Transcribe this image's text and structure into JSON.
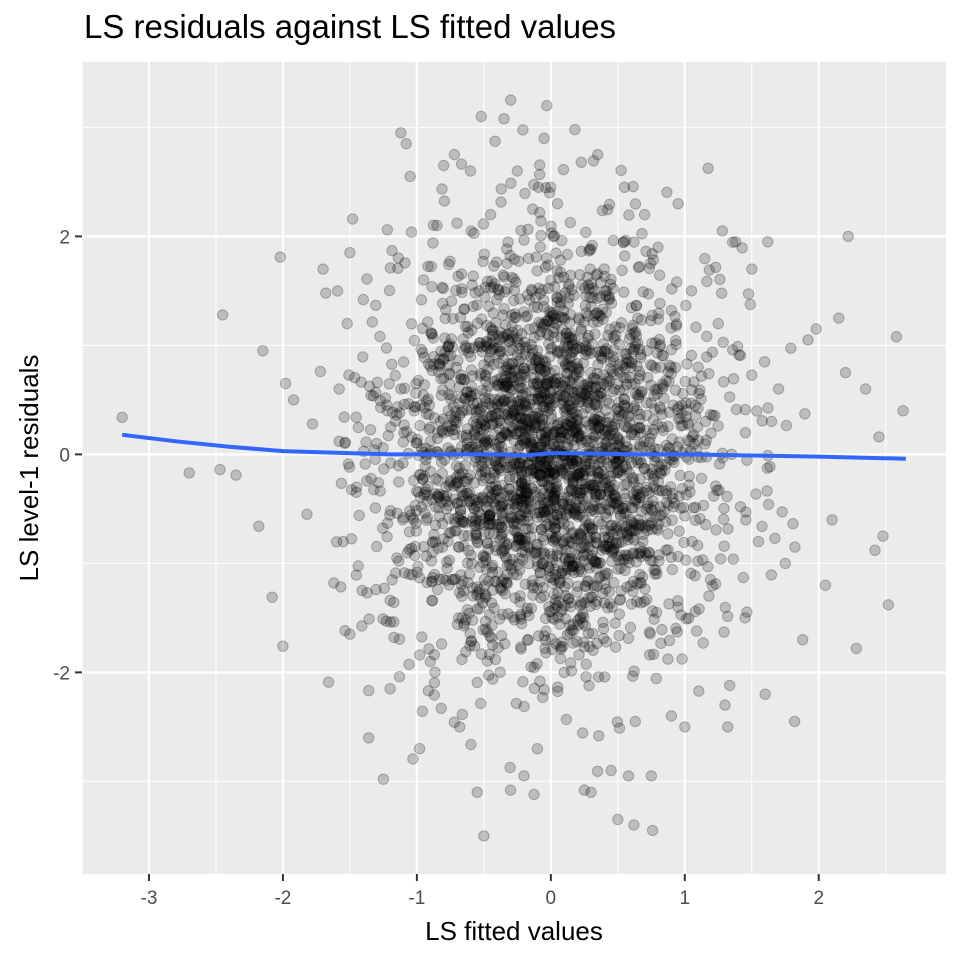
{
  "chart_data": {
    "type": "scatter",
    "title": "LS residuals against LS fitted values",
    "xlabel": "LS fitted values",
    "ylabel": "LS level-1 residuals",
    "xlim": [
      -3.5,
      2.95
    ],
    "ylim": [
      -3.85,
      3.6
    ],
    "x_ticks": [
      -3,
      -2,
      -1,
      0,
      1,
      2
    ],
    "y_ticks": [
      -2,
      0,
      2
    ],
    "x_tick_labels": [
      "-3",
      "-2",
      "-1",
      "0",
      "1",
      "2"
    ],
    "y_tick_labels": [
      "-2",
      "0",
      "2"
    ],
    "grid": true,
    "point_count_approx": 3000,
    "point_color": "#000000",
    "point_alpha": 0.2,
    "smooth_color": "#3366FF",
    "background_color": "#EBEBEB",
    "grid_color": "#FFFFFF",
    "smooth_line": {
      "x": [
        -3.2,
        -2.8,
        -2.4,
        -2.0,
        -1.6,
        -1.2,
        -0.8,
        -0.4,
        -0.2,
        0.0,
        0.2,
        0.6,
        1.0,
        1.5,
        2.0,
        2.3,
        2.65
      ],
      "y": [
        0.18,
        0.12,
        0.07,
        0.03,
        0.015,
        0.0,
        0.0,
        0.0,
        -0.01,
        0.01,
        0.01,
        0.0,
        0.0,
        -0.01,
        -0.02,
        -0.03,
        -0.04
      ]
    },
    "points": [
      [
        -3.2,
        0.34
      ],
      [
        -2.7,
        -0.17
      ],
      [
        -2.47,
        -0.14
      ],
      [
        -2.35,
        -0.19
      ],
      [
        -2.45,
        1.28
      ],
      [
        -2.15,
        0.95
      ],
      [
        -2.18,
        -0.66
      ],
      [
        -2.08,
        -1.31
      ],
      [
        -2.02,
        1.81
      ],
      [
        -2.0,
        -1.76
      ],
      [
        -1.98,
        0.65
      ],
      [
        -1.92,
        0.5
      ],
      [
        -1.82,
        -0.55
      ],
      [
        -1.78,
        0.28
      ],
      [
        -1.72,
        0.76
      ],
      [
        -1.7,
        1.7
      ],
      [
        -1.68,
        1.48
      ],
      [
        -1.66,
        -2.09
      ],
      [
        -1.62,
        -1.18
      ],
      [
        -1.58,
        0.6
      ],
      [
        -1.55,
        -0.8
      ],
      [
        -1.52,
        1.2
      ],
      [
        -1.5,
        -1.65
      ],
      [
        -1.48,
        2.16
      ],
      [
        -1.45,
        -0.3
      ],
      [
        -1.4,
        1.42
      ],
      [
        -1.36,
        -2.6
      ],
      [
        -1.3,
        0.1
      ],
      [
        -1.25,
        -2.98
      ],
      [
        -1.22,
        2.06
      ],
      [
        -1.2,
        -2.15
      ],
      [
        -1.15,
        -0.95
      ],
      [
        -1.12,
        2.95
      ],
      [
        -1.08,
        2.85
      ],
      [
        -1.05,
        2.55
      ],
      [
        -1.02,
        0.4
      ],
      [
        -0.98,
        -2.7
      ],
      [
        -0.95,
        1.6
      ],
      [
        -0.9,
        -1.9
      ],
      [
        -0.85,
        2.1
      ],
      [
        -0.8,
        2.65
      ],
      [
        -0.78,
        -0.5
      ],
      [
        -0.72,
        2.75
      ],
      [
        -0.68,
        -2.5
      ],
      [
        -0.6,
        2.6
      ],
      [
        -0.55,
        -3.1
      ],
      [
        -0.52,
        3.1
      ],
      [
        -0.5,
        -3.5
      ],
      [
        -0.45,
        2.2
      ],
      [
        -0.35,
        3.08
      ],
      [
        -0.3,
        3.25
      ],
      [
        -0.25,
        2.6
      ],
      [
        -0.2,
        -2.95
      ],
      [
        -0.1,
        -2.7
      ],
      [
        -0.05,
        2.9
      ],
      [
        -0.03,
        3.2
      ],
      [
        0.05,
        2.3
      ],
      [
        0.1,
        -2.0
      ],
      [
        0.18,
        2.98
      ],
      [
        0.25,
        -3.08
      ],
      [
        0.3,
        -3.1
      ],
      [
        0.35,
        2.75
      ],
      [
        0.45,
        -2.9
      ],
      [
        0.5,
        -3.35
      ],
      [
        0.55,
        2.45
      ],
      [
        0.58,
        -2.95
      ],
      [
        0.62,
        -3.4
      ],
      [
        0.7,
        2.2
      ],
      [
        0.75,
        -2.95
      ],
      [
        0.76,
        -3.45
      ],
      [
        0.8,
        1.9
      ],
      [
        0.9,
        -2.4
      ],
      [
        0.95,
        2.3
      ],
      [
        1.0,
        -2.5
      ],
      [
        1.05,
        1.5
      ],
      [
        1.1,
        0.8
      ],
      [
        1.18,
        -1.3
      ],
      [
        1.25,
        1.2
      ],
      [
        1.28,
        2.05
      ],
      [
        1.3,
        -2.3
      ],
      [
        1.32,
        -2.5
      ],
      [
        1.38,
        1.95
      ],
      [
        1.45,
        -1.5
      ],
      [
        1.5,
        1.7
      ],
      [
        1.55,
        -0.8
      ],
      [
        1.6,
        -2.2
      ],
      [
        1.62,
        1.95
      ],
      [
        1.7,
        0.6
      ],
      [
        1.75,
        -1.0
      ],
      [
        1.82,
        -2.45
      ],
      [
        1.88,
        -1.7
      ],
      [
        1.92,
        1.05
      ],
      [
        1.98,
        1.15
      ],
      [
        2.05,
        -1.2
      ],
      [
        2.1,
        -0.6
      ],
      [
        2.15,
        1.25
      ],
      [
        2.2,
        0.75
      ],
      [
        2.22,
        2.0
      ],
      [
        2.28,
        -1.78
      ],
      [
        2.35,
        0.6
      ],
      [
        2.42,
        -0.88
      ],
      [
        2.45,
        0.16
      ],
      [
        2.48,
        -0.75
      ],
      [
        2.52,
        -1.38
      ],
      [
        2.58,
        1.08
      ],
      [
        2.63,
        0.4
      ]
    ]
  }
}
